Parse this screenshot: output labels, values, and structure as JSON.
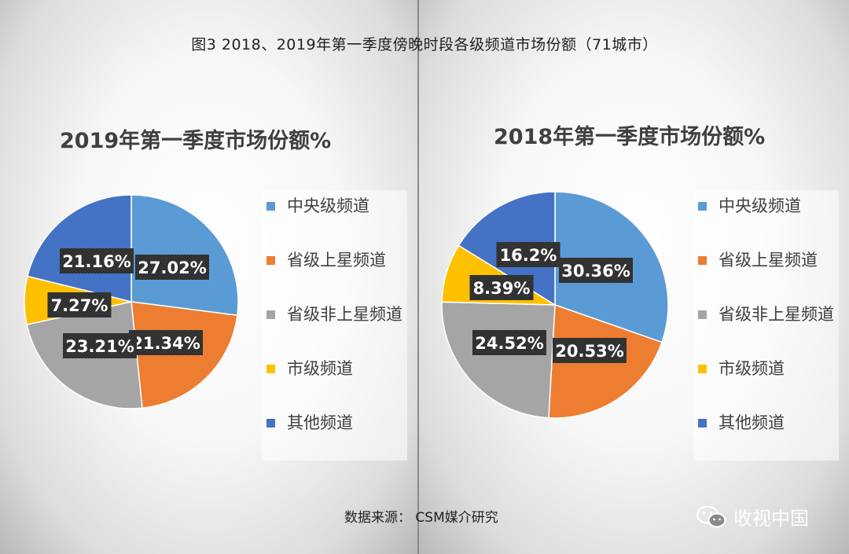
{
  "title": "图3  2018、2019年第一季度傍晚时段各级频道市场份额（71城市）",
  "source": "数据来源：  CSM媒介研究",
  "watermark": "收视中国",
  "chart_data": [
    {
      "type": "pie",
      "title": "2019年第一季度市场份额%",
      "categories": [
        "中央级频道",
        "省级上星频道",
        "省级非上星频道",
        "市级频道",
        "其他频道"
      ],
      "values": [
        27.02,
        21.34,
        23.21,
        7.27,
        21.16
      ],
      "labels": [
        "27.02%",
        "21.34%",
        "23.21%",
        "7.27%",
        "21.16%"
      ],
      "colors": [
        "#5b9bd5",
        "#ed7d31",
        "#a5a5a5",
        "#ffc000",
        "#4472c4"
      ],
      "legend": "right"
    },
    {
      "type": "pie",
      "title": "2018年第一季度市场份额%",
      "categories": [
        "中央级频道",
        "省级上星频道",
        "省级非上星频道",
        "市级频道",
        "其他频道"
      ],
      "values": [
        30.36,
        20.53,
        24.52,
        8.39,
        16.2
      ],
      "labels": [
        "30.36%",
        "20.53%",
        "24.52%",
        "8.39%",
        "16.2%"
      ],
      "colors": [
        "#5b9bd5",
        "#ed7d31",
        "#a5a5a5",
        "#ffc000",
        "#4472c4"
      ],
      "legend": "right"
    }
  ]
}
